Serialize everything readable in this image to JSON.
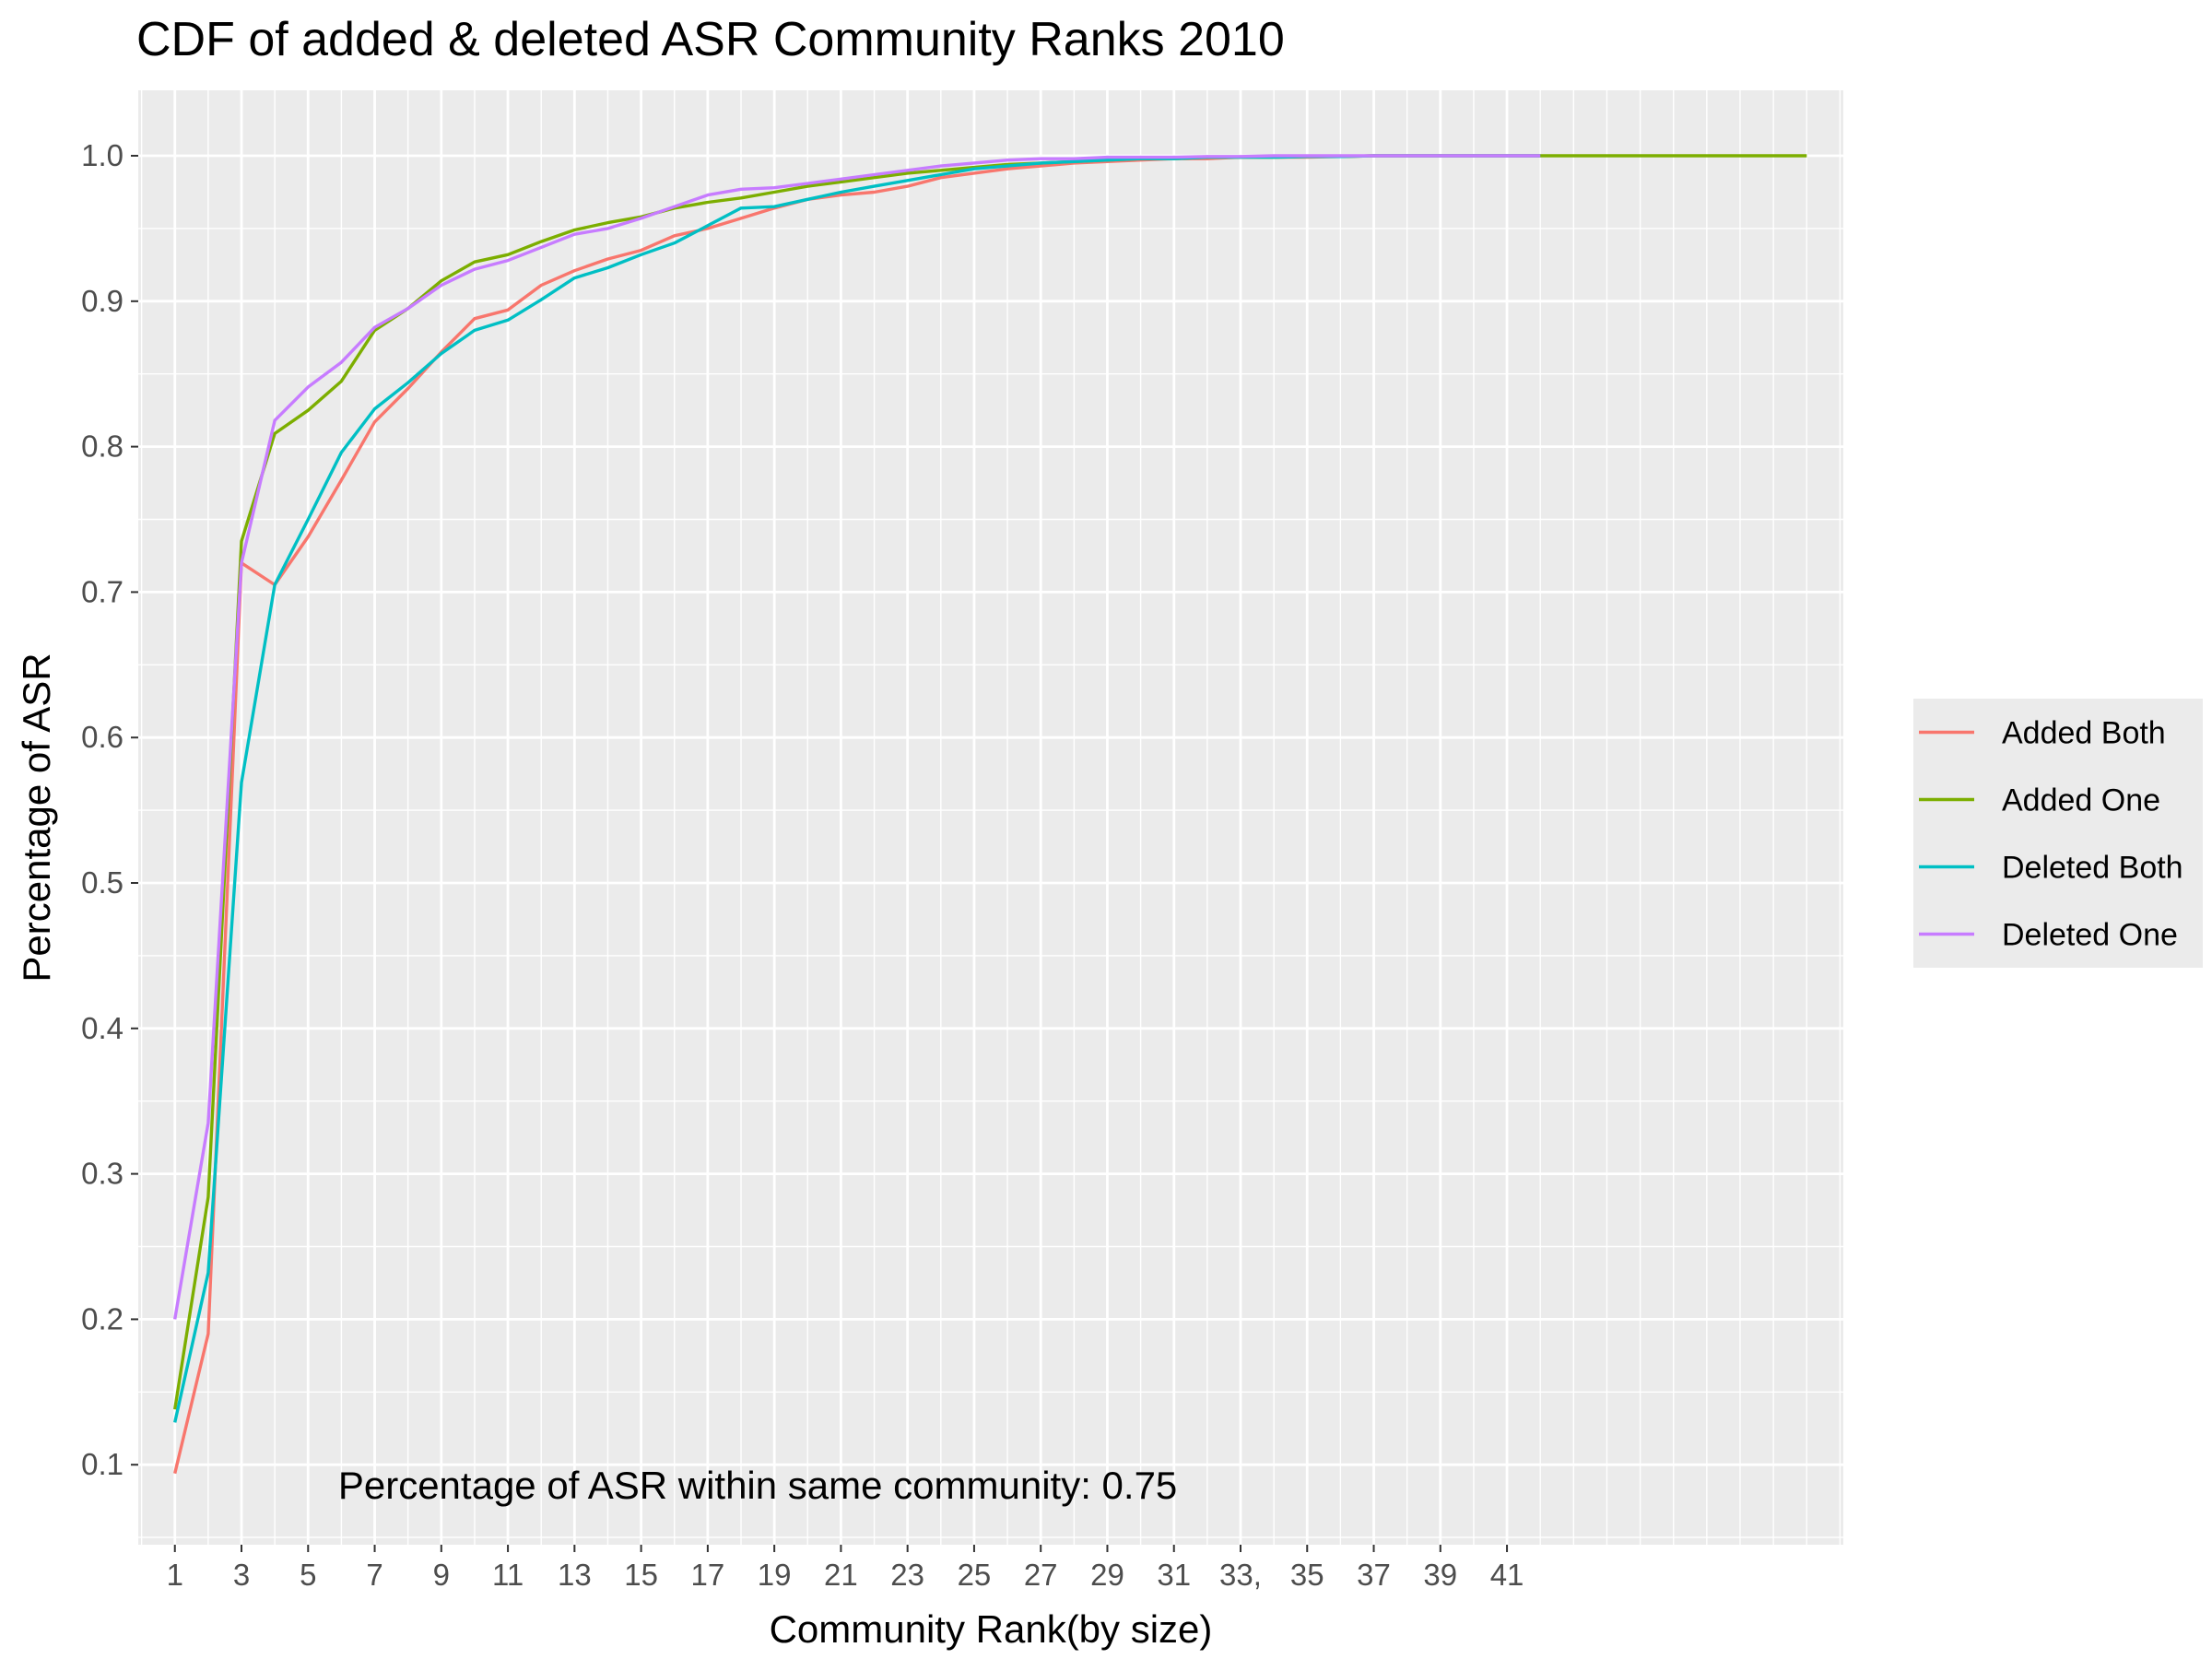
{
  "chart_data": {
    "type": "line",
    "title": "CDF of added & deleted ASR Community Ranks 2010",
    "xlabel": "Community Rank(by size)",
    "ylabel": "Percentage of ASR",
    "annotation": "Percentage of ASR within same community: 0.75",
    "xlim": [
      -0.1,
      51.1
    ],
    "ylim": [
      0.045,
      1.045
    ],
    "x_ticks": [
      1,
      3,
      5,
      7,
      9,
      11,
      13,
      15,
      17,
      19,
      21,
      23,
      25,
      27,
      29,
      31,
      33,
      35,
      37,
      39,
      41
    ],
    "x_tick_labels": [
      "1",
      "3",
      "5",
      "7",
      "9",
      "11",
      "13",
      "15",
      "17",
      "19",
      "21",
      "23",
      "25",
      "27",
      "29",
      "31",
      "33,",
      "35",
      "37",
      "39",
      "41"
    ],
    "y_ticks": [
      0.1,
      0.2,
      0.3,
      0.4,
      0.5,
      0.6,
      0.7,
      0.8,
      0.9,
      1.0
    ],
    "y_tick_labels": [
      "0.1",
      "0.2",
      "0.3",
      "0.4",
      "0.5",
      "0.6",
      "0.7",
      "0.8",
      "0.9",
      "1.0"
    ],
    "grid": true,
    "legend_position": "right",
    "series": [
      {
        "name": "Added Both",
        "color": "#F8766D",
        "x": [
          1,
          2,
          3,
          4,
          5,
          6,
          7,
          8,
          9,
          10,
          11,
          12,
          13,
          14,
          15,
          16,
          17,
          18,
          19,
          20,
          21,
          22,
          23,
          24,
          25,
          26,
          27,
          28,
          29,
          30,
          31,
          32,
          33,
          34,
          35,
          36,
          37,
          38,
          39,
          40,
          41,
          42
        ],
        "values": [
          0.094,
          0.19,
          0.72,
          0.705,
          0.738,
          0.777,
          0.817,
          0.84,
          0.865,
          0.888,
          0.894,
          0.911,
          0.921,
          0.929,
          0.935,
          0.945,
          0.95,
          0.957,
          0.964,
          0.97,
          0.973,
          0.975,
          0.979,
          0.985,
          0.988,
          0.991,
          0.993,
          0.995,
          0.996,
          0.997,
          0.998,
          0.998,
          0.999,
          0.999,
          0.999,
          0.9995,
          1.0,
          1.0,
          1.0,
          1.0,
          1.0,
          1.0
        ]
      },
      {
        "name": "Added One",
        "color": "#7CAE00",
        "x": [
          1,
          2,
          3,
          4,
          5,
          6,
          7,
          8,
          9,
          10,
          11,
          12,
          13,
          14,
          15,
          16,
          17,
          18,
          19,
          20,
          21,
          22,
          23,
          24,
          25,
          26,
          27,
          28,
          29,
          30,
          31,
          32,
          33,
          34,
          35,
          36,
          37,
          38,
          39,
          40,
          41,
          42,
          43,
          44,
          45,
          46,
          47,
          48,
          49,
          50
        ],
        "values": [
          0.138,
          0.284,
          0.735,
          0.809,
          0.825,
          0.845,
          0.88,
          0.895,
          0.914,
          0.927,
          0.932,
          0.941,
          0.949,
          0.954,
          0.958,
          0.964,
          0.968,
          0.971,
          0.975,
          0.979,
          0.982,
          0.985,
          0.988,
          0.99,
          0.992,
          0.994,
          0.995,
          0.996,
          0.997,
          0.998,
          0.998,
          0.999,
          0.999,
          0.999,
          0.9995,
          0.9995,
          1.0,
          1.0,
          1.0,
          1.0,
          1.0,
          1.0,
          1.0,
          1.0,
          1.0,
          1.0,
          1.0,
          1.0,
          1.0,
          1.0
        ]
      },
      {
        "name": "Deleted Both",
        "color": "#00BFC4",
        "x": [
          1,
          2,
          3,
          4,
          5,
          6,
          7,
          8,
          9,
          10,
          11,
          12,
          13,
          14,
          15,
          16,
          17,
          18,
          19,
          20,
          21,
          22,
          23,
          24,
          25,
          26,
          27,
          28,
          29,
          30,
          31,
          32,
          33,
          34,
          35,
          36,
          37,
          38,
          39,
          40,
          41,
          42
        ],
        "values": [
          0.129,
          0.232,
          0.569,
          0.705,
          0.75,
          0.796,
          0.826,
          0.844,
          0.864,
          0.88,
          0.887,
          0.901,
          0.916,
          0.923,
          0.932,
          0.94,
          0.952,
          0.964,
          0.965,
          0.97,
          0.975,
          0.979,
          0.983,
          0.987,
          0.991,
          0.993,
          0.995,
          0.996,
          0.997,
          0.998,
          0.998,
          0.999,
          0.999,
          0.999,
          0.9995,
          0.9995,
          1.0,
          1.0,
          1.0,
          1.0,
          1.0,
          1.0
        ]
      },
      {
        "name": "Deleted One",
        "color": "#C77CFF",
        "x": [
          1,
          2,
          3,
          4,
          5,
          6,
          7,
          8,
          9,
          10,
          11,
          12,
          13,
          14,
          15,
          16,
          17,
          18,
          19,
          20,
          21,
          22,
          23,
          24,
          25,
          26,
          27,
          28,
          29,
          30,
          31,
          32,
          33,
          34,
          35,
          36,
          37,
          38,
          39,
          40,
          41,
          42
        ],
        "values": [
          0.2,
          0.335,
          0.72,
          0.818,
          0.841,
          0.858,
          0.882,
          0.895,
          0.911,
          0.922,
          0.928,
          0.937,
          0.946,
          0.95,
          0.957,
          0.965,
          0.973,
          0.977,
          0.978,
          0.981,
          0.984,
          0.987,
          0.99,
          0.993,
          0.995,
          0.997,
          0.998,
          0.998,
          0.999,
          0.999,
          0.999,
          0.9995,
          0.9995,
          1.0,
          1.0,
          1.0,
          1.0,
          1.0,
          1.0,
          1.0,
          1.0,
          1.0
        ]
      }
    ]
  }
}
